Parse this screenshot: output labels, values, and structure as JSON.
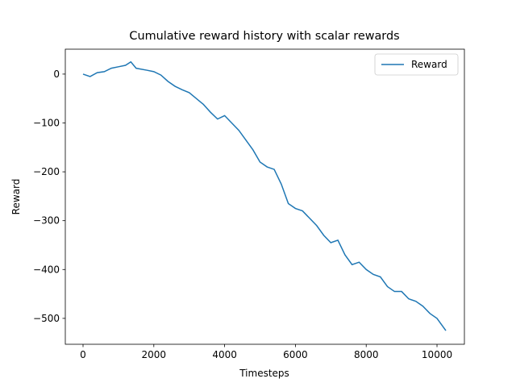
{
  "chart_data": {
    "type": "line",
    "title": "Cumulative reward history with scalar rewards",
    "x_label": "Timesteps",
    "y_label": "Reward",
    "x": [
      0,
      200,
      400,
      600,
      800,
      1000,
      1200,
      1350,
      1500,
      1800,
      2000,
      2200,
      2400,
      2600,
      2800,
      3000,
      3200,
      3400,
      3600,
      3800,
      4000,
      4200,
      4400,
      4600,
      4800,
      5000,
      5200,
      5400,
      5600,
      5800,
      6000,
      6200,
      6400,
      6600,
      6800,
      7000,
      7200,
      7400,
      7600,
      7800,
      8000,
      8200,
      8400,
      8600,
      8800,
      9000,
      9200,
      9400,
      9600,
      9800,
      10000,
      10250
    ],
    "series": [
      {
        "name": "Reward",
        "color": "#1f77b4",
        "values": [
          0,
          -5,
          3,
          5,
          12,
          15,
          18,
          25,
          12,
          8,
          5,
          -2,
          -15,
          -25,
          -32,
          -38,
          -50,
          -62,
          -78,
          -92,
          -85,
          -100,
          -115,
          -135,
          -155,
          -180,
          -190,
          -195,
          -225,
          -265,
          -275,
          -280,
          -295,
          -310,
          -330,
          -345,
          -340,
          -370,
          -390,
          -385,
          -400,
          -410,
          -415,
          -435,
          -445,
          -445,
          -460,
          -465,
          -475,
          -490,
          -500,
          -525
        ]
      }
    ],
    "xlim": [
      -501,
      10774
    ],
    "ylim": [
      -553,
      51
    ],
    "xticks": [
      0,
      2000,
      4000,
      6000,
      8000,
      10000
    ],
    "yticks": [
      {
        "value": -500,
        "label": "−500"
      },
      {
        "value": -400,
        "label": "−400"
      },
      {
        "value": -300,
        "label": "−300"
      },
      {
        "value": -200,
        "label": "−200"
      },
      {
        "value": -100,
        "label": "−100"
      },
      0
    ],
    "legend": "upper right",
    "grid": false
  }
}
